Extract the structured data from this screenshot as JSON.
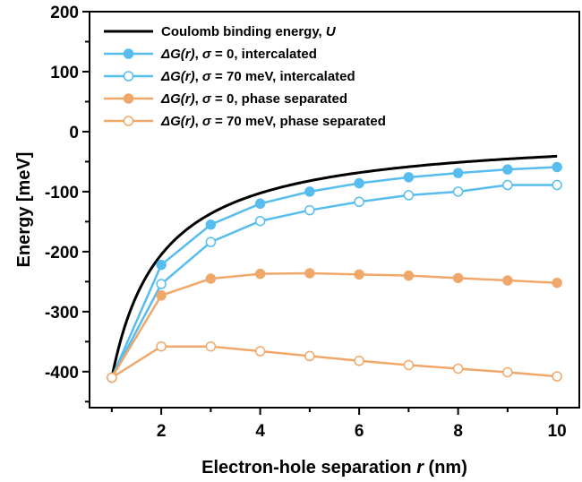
{
  "chart_data": {
    "type": "line",
    "xlabel_main": "Electron-hole separation ",
    "xlabel_var": "r",
    "xlabel_unit": " (nm)",
    "ylabel": "Energy [meV]",
    "xlim": [
      0.55,
      10.45
    ],
    "ylim": [
      -460,
      200
    ],
    "x_ticks": [
      2,
      4,
      6,
      8,
      10
    ],
    "x_minor_ticks": [
      1,
      3,
      5,
      7,
      9
    ],
    "y_ticks": [
      200,
      100,
      0,
      -100,
      -200,
      -300,
      -400
    ],
    "y_minor_ticks": [
      150,
      50,
      -50,
      -150,
      -250,
      -350,
      -450
    ],
    "x_tick_labels": [
      "2",
      "4",
      "6",
      "8",
      "10"
    ],
    "y_tick_labels": [
      "200",
      "100",
      "0",
      "-100",
      "-200",
      "-300",
      "-400"
    ],
    "grid": false,
    "legend_position": "top-left",
    "series": [
      {
        "legend": [
          {
            "t": "Coulomb binding energy, ",
            "i": false
          },
          {
            "t": "U",
            "i": true
          }
        ],
        "color": "#000000",
        "marker": "none",
        "function": "coulomb",
        "x": [
          1,
          1.5,
          2,
          3,
          4,
          5,
          6,
          7,
          8,
          9,
          10
        ],
        "values": [
          -410,
          -275,
          -205,
          -137,
          -103,
          -82,
          -68,
          -59,
          -51,
          -46,
          -41
        ]
      },
      {
        "legend": [
          {
            "t": "ΔG(r)",
            "i": true
          },
          {
            "t": ", ",
            "i": false
          },
          {
            "t": "σ",
            "i": true
          },
          {
            "t": " = 0, intercalated",
            "i": false
          }
        ],
        "color": "#56BDEE",
        "marker": "filled",
        "x": [
          1,
          2,
          3,
          4,
          5,
          6,
          7,
          8,
          9,
          10
        ],
        "values": [
          -410,
          -222,
          -155,
          -120,
          -100,
          -86,
          -76,
          -69,
          -63,
          -59
        ]
      },
      {
        "legend": [
          {
            "t": "ΔG(r)",
            "i": true
          },
          {
            "t": ", ",
            "i": false
          },
          {
            "t": "σ",
            "i": true
          },
          {
            "t": " = 70 meV, intercalated",
            "i": false
          }
        ],
        "color": "#56BDEE",
        "marker": "open",
        "x": [
          1,
          2,
          3,
          4,
          5,
          6,
          7,
          8,
          9,
          10
        ],
        "values": [
          -410,
          -254,
          -184,
          -149,
          -131,
          -117,
          -106,
          -100,
          -89,
          -89
        ]
      },
      {
        "legend": [
          {
            "t": "ΔG(r)",
            "i": true
          },
          {
            "t": ", ",
            "i": false
          },
          {
            "t": "σ",
            "i": true
          },
          {
            "t": " = 0, phase separated",
            "i": false
          }
        ],
        "color": "#F0A86A",
        "marker": "filled",
        "x": [
          1,
          2,
          3,
          4,
          5,
          6,
          7,
          8,
          9,
          10
        ],
        "values": [
          -410,
          -273,
          -245,
          -237,
          -236,
          -238,
          -240,
          -244,
          -248,
          -252
        ]
      },
      {
        "legend": [
          {
            "t": "ΔG(r)",
            "i": true
          },
          {
            "t": ", ",
            "i": false
          },
          {
            "t": "σ",
            "i": true
          },
          {
            "t": " = 70 meV, phase separated",
            "i": false
          }
        ],
        "color": "#F0A86A",
        "marker": "open",
        "x": [
          1,
          2,
          3,
          4,
          5,
          6,
          7,
          8,
          9,
          10
        ],
        "values": [
          -410,
          -358,
          -358,
          -366,
          -374,
          -382,
          -389,
          -395,
          -401,
          -408
        ]
      }
    ]
  }
}
